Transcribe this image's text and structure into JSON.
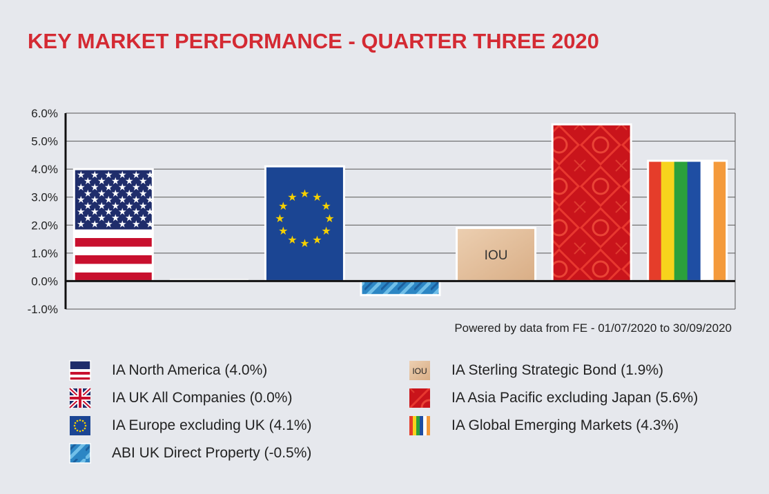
{
  "chart_data": {
    "type": "bar",
    "title": "KEY MARKET PERFORMANCE - QUARTER THREE 2020",
    "categories": [
      "IA North America",
      "IA UK All Companies",
      "IA Europe excluding UK",
      "ABI UK Direct Property",
      "IA Sterling Strategic Bond",
      "IA Asia Pacific excluding Japan",
      "IA Global Emerging Markets"
    ],
    "values": [
      4.0,
      0.0,
      4.1,
      -0.5,
      1.9,
      5.6,
      4.3
    ],
    "legend_labels": [
      "IA North America (4.0%)",
      "IA UK All Companies (0.0%)",
      "IA Europe excluding UK (4.1%)",
      "ABI UK Direct Property (-0.5%)",
      "IA Sterling Strategic Bond (1.9%)",
      "IA Asia Pacific excluding Japan (5.6%)",
      "IA Global Emerging Markets (4.3%)"
    ],
    "swatch_styles": [
      "us-flag",
      "uk-flag",
      "eu-flag",
      "property-glass",
      "iou-paper",
      "chinese-red",
      "rainbow-stripes"
    ],
    "bar_texts": [
      "",
      "",
      "",
      "",
      "IOU",
      "",
      ""
    ],
    "swatch_text": "IOU",
    "yticks": [
      "6.0%",
      "5.0%",
      "4.0%",
      "3.0%",
      "2.0%",
      "1.0%",
      "0.0%",
      "-1.0%"
    ],
    "ylim": [
      -1,
      6
    ],
    "xlabel": "",
    "ylabel": "",
    "grid": true,
    "source": "Powered by data from FE - 01/07/2020 to 30/09/2020"
  },
  "colors": {
    "title": "#d42a33",
    "background": "#e6e8ed",
    "us_blue": "#1f2d6b",
    "us_red": "#c8102e",
    "eu_blue": "#1b4593",
    "eu_star": "#f5d000",
    "property": "#2e88c4",
    "iou": "#e4c09a",
    "asia_red": "#d01a1a",
    "rainbow": [
      "#e53d2a",
      "#f7d31c",
      "#2ba03c",
      "#1f4ea3",
      "#ffffff",
      "#f49a3b"
    ]
  }
}
